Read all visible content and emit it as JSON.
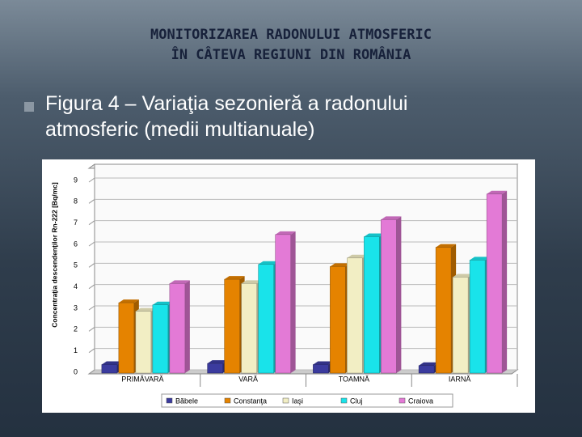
{
  "slide": {
    "title_lines": [
      "MONITORIZAREA RADONULUI ATMOSFERIC",
      "ÎN CÂTEVA REGIUNI DIN ROMÂNIA"
    ],
    "bullet_lines": [
      "Figura 4 – Variaţia sezonieră a radonului",
      "atmosferic (medii multianuale)"
    ]
  },
  "chart_data": {
    "type": "bar",
    "y_label": "Concentraţia descendenţilor Rn-222 [Bq/mc]",
    "categories": [
      "PRIMĂVARĂ",
      "VARĂ",
      "TOAMNĂ",
      "IARNĂ"
    ],
    "series": [
      {
        "name": "Băbele",
        "color": "#3b3b9e",
        "values": [
          0.4,
          0.45,
          0.4,
          0.35
        ]
      },
      {
        "name": "Constanţa",
        "color": "#e58300",
        "values": [
          3.3,
          4.4,
          5.0,
          5.9
        ]
      },
      {
        "name": "Iaşi",
        "color": "#f2eec4",
        "values": [
          2.9,
          4.2,
          5.4,
          4.5
        ]
      },
      {
        "name": "Cluj",
        "color": "#19e3ea",
        "values": [
          3.2,
          5.1,
          6.4,
          5.3
        ]
      },
      {
        "name": "Craiova",
        "color": "#e37ad6",
        "values": [
          4.2,
          6.5,
          7.2,
          8.4
        ]
      }
    ],
    "ylim": [
      0,
      9
    ],
    "yticks": [
      0,
      1,
      2,
      3,
      4,
      5,
      6,
      7,
      8,
      9
    ],
    "grid": true,
    "legend": "bottom"
  }
}
